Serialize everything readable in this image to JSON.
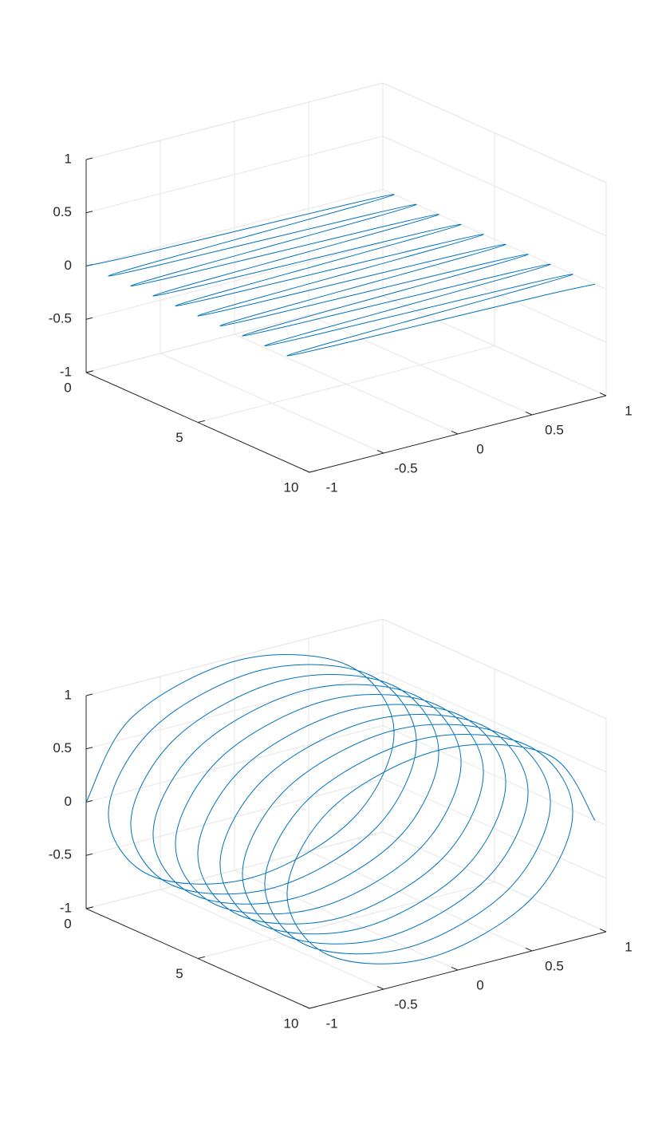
{
  "chart_data": [
    {
      "type": "line3d",
      "xlim": [
        0,
        10
      ],
      "ylim": [
        -1,
        1
      ],
      "zlim": [
        -1,
        1
      ],
      "xticks": [
        0,
        5,
        10
      ],
      "yticks": [
        -1,
        -0.5,
        0,
        0.5,
        1
      ],
      "zticks": [
        -1,
        -0.5,
        0,
        0.5,
        1
      ],
      "grid": true,
      "series": [
        {
          "color": "#0072bd",
          "x": [
            0,
            0.125,
            0.25,
            0.375,
            0.5,
            0.625,
            0.75,
            0.875,
            1,
            1.125,
            1.25,
            1.375,
            1.5,
            1.625,
            1.75,
            1.875,
            2,
            2.125,
            2.25,
            2.375,
            2.5,
            2.625,
            2.75,
            2.875,
            3,
            3.125,
            3.25,
            3.375,
            3.5,
            3.625,
            3.75,
            3.875,
            4,
            4.125,
            4.25,
            4.375,
            4.5,
            4.625,
            4.75,
            4.875,
            5,
            5.125,
            5.25,
            5.375,
            5.5,
            5.625,
            5.75,
            5.875,
            6,
            6.125,
            6.25,
            6.375,
            6.5,
            6.625,
            6.75,
            6.875,
            7,
            7.125,
            7.25,
            7.375,
            7.5,
            7.625,
            7.75,
            7.875,
            8,
            8.125,
            8.25,
            8.375,
            8.5,
            8.625,
            8.75,
            8.875,
            9,
            9.125,
            9.25,
            9.375,
            9.5
          ],
          "y": [
            -1,
            -0.707,
            0,
            0.707,
            1,
            0.707,
            0,
            -0.707,
            -1,
            -0.707,
            0,
            0.707,
            1,
            0.707,
            0,
            -0.707,
            -1,
            -0.707,
            0,
            0.707,
            1,
            0.707,
            0,
            -0.707,
            -1,
            -0.707,
            0,
            0.707,
            1,
            0.707,
            0,
            -0.707,
            -1,
            -0.707,
            0,
            0.707,
            1,
            0.707,
            0,
            -0.707,
            -1,
            -0.707,
            0,
            0.707,
            1,
            0.707,
            0,
            -0.707,
            -1,
            -0.707,
            0,
            0.707,
            1,
            0.707,
            0,
            -0.707,
            -1,
            -0.707,
            0,
            0.707,
            1,
            0.707,
            0,
            -0.707,
            -1,
            -0.707,
            0,
            0.707,
            1,
            0.707,
            0,
            -0.707,
            -1,
            -0.707,
            0,
            0.707,
            1
          ],
          "z": [
            0,
            0,
            0,
            0,
            0,
            0,
            0,
            0,
            0,
            0,
            0,
            0,
            0,
            0,
            0,
            0,
            0,
            0,
            0,
            0,
            0,
            0,
            0,
            0,
            0,
            0,
            0,
            0,
            0,
            0,
            0,
            0,
            0,
            0,
            0,
            0,
            0,
            0,
            0,
            0,
            0,
            0,
            0,
            0,
            0,
            0,
            0,
            0,
            0,
            0,
            0,
            0,
            0,
            0,
            0,
            0,
            0,
            0,
            0,
            0,
            0,
            0,
            0,
            0,
            0,
            0,
            0,
            0,
            0,
            0,
            0,
            0,
            0,
            0,
            0,
            0,
            0
          ]
        }
      ]
    },
    {
      "type": "line3d",
      "xlim": [
        0,
        10
      ],
      "ylim": [
        -1,
        1
      ],
      "zlim": [
        -1,
        1
      ],
      "xticks": [
        0,
        5,
        10
      ],
      "yticks": [
        -1,
        -0.5,
        0,
        0.5,
        1
      ],
      "zticks": [
        -1,
        -0.5,
        0,
        0.5,
        1
      ],
      "grid": true,
      "series": [
        {
          "color": "#0072bd",
          "x": [
            0,
            0.125,
            0.25,
            0.375,
            0.5,
            0.625,
            0.75,
            0.875,
            1,
            1.125,
            1.25,
            1.375,
            1.5,
            1.625,
            1.75,
            1.875,
            2,
            2.125,
            2.25,
            2.375,
            2.5,
            2.625,
            2.75,
            2.875,
            3,
            3.125,
            3.25,
            3.375,
            3.5,
            3.625,
            3.75,
            3.875,
            4,
            4.125,
            4.25,
            4.375,
            4.5,
            4.625,
            4.75,
            4.875,
            5,
            5.125,
            5.25,
            5.375,
            5.5,
            5.625,
            5.75,
            5.875,
            6,
            6.125,
            6.25,
            6.375,
            6.5,
            6.625,
            6.75,
            6.875,
            7,
            7.125,
            7.25,
            7.375,
            7.5,
            7.625,
            7.75,
            7.875,
            8,
            8.125,
            8.25,
            8.375,
            8.5,
            8.625,
            8.75,
            8.875,
            9,
            9.125,
            9.25,
            9.375,
            9.5
          ],
          "y": [
            -1,
            -0.707,
            0,
            0.707,
            1,
            0.707,
            0,
            -0.707,
            -1,
            -0.707,
            0,
            0.707,
            1,
            0.707,
            0,
            -0.707,
            -1,
            -0.707,
            0,
            0.707,
            1,
            0.707,
            0,
            -0.707,
            -1,
            -0.707,
            0,
            0.707,
            1,
            0.707,
            0,
            -0.707,
            -1,
            -0.707,
            0,
            0.707,
            1,
            0.707,
            0,
            -0.707,
            -1,
            -0.707,
            0,
            0.707,
            1,
            0.707,
            0,
            -0.707,
            -1,
            -0.707,
            0,
            0.707,
            1,
            0.707,
            0,
            -0.707,
            -1,
            -0.707,
            0,
            0.707,
            1,
            0.707,
            0,
            -0.707,
            -1,
            -0.707,
            0,
            0.707,
            1,
            0.707,
            0,
            -0.707,
            -1,
            -0.707,
            0,
            0.707,
            1
          ],
          "z": [
            0,
            0.707,
            1,
            0.707,
            0,
            -0.707,
            -1,
            -0.707,
            0,
            0.707,
            1,
            0.707,
            0,
            -0.707,
            -1,
            -0.707,
            0,
            0.707,
            1,
            0.707,
            0,
            -0.707,
            -1,
            -0.707,
            0,
            0.707,
            1,
            0.707,
            0,
            -0.707,
            -1,
            -0.707,
            0,
            0.707,
            1,
            0.707,
            0,
            -0.707,
            -1,
            -0.707,
            0,
            0.707,
            1,
            0.707,
            0,
            -0.707,
            -1,
            -0.707,
            0,
            0.707,
            1,
            0.707,
            0,
            -0.707,
            -1,
            -0.707,
            0,
            0.707,
            1,
            0.707,
            0,
            -0.707,
            -1,
            -0.707,
            0,
            0.707,
            1,
            0.707,
            0,
            -0.707,
            -1,
            -0.707,
            0,
            0.707,
            1,
            0.707,
            0
          ]
        }
      ]
    }
  ]
}
